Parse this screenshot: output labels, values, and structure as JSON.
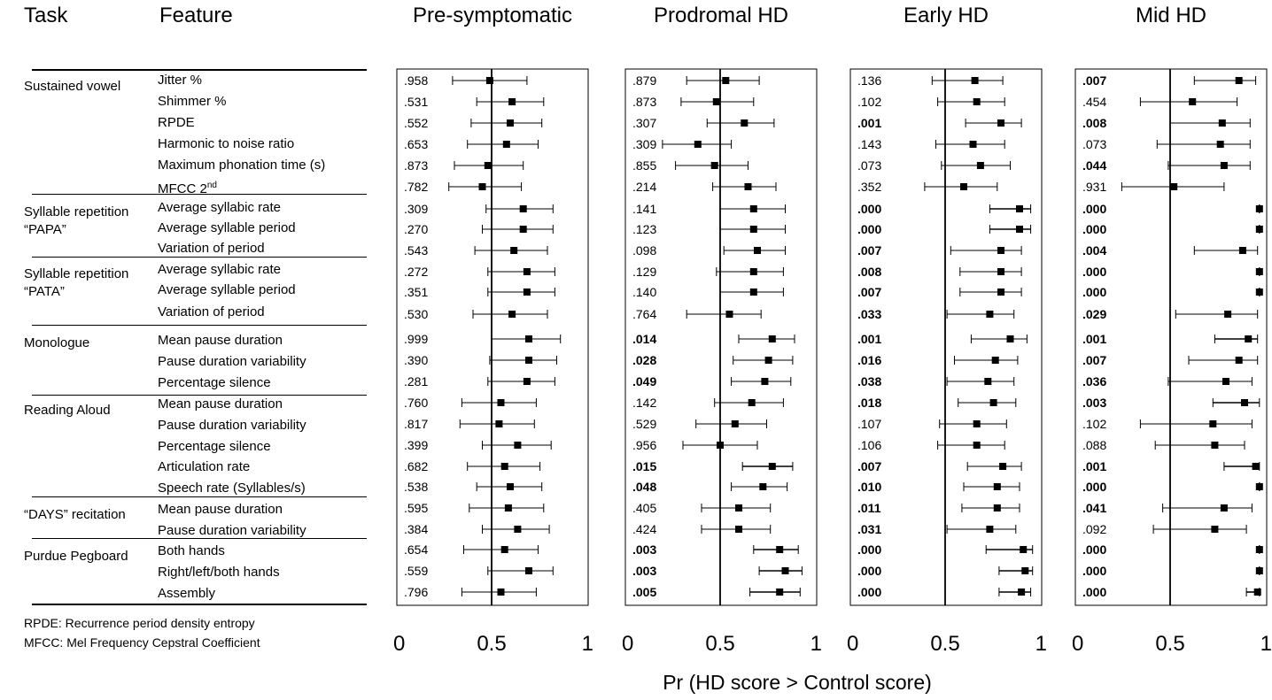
{
  "headers": {
    "task": "Task",
    "feature": "Feature"
  },
  "x_axis_label": "Pr (HD score > Control score)",
  "footnotes": [
    "RPDE: Recurrence period density entropy",
    "MFCC: Mel Frequency Cepstral Coefficient"
  ],
  "tasks": [
    {
      "label": "Sustained vowel",
      "features": [
        "Jitter %",
        "Shimmer %",
        "RPDE",
        "Harmonic to noise ratio",
        "Maximum phonation time (s)",
        "MFCC 2nd"
      ]
    },
    {
      "label": "Syllable repetition “PAPA”",
      "features": [
        "Average syllabic rate",
        "Average syllable period",
        "Variation of period"
      ]
    },
    {
      "label": "Syllable repetition “PATA”",
      "features": [
        "Average syllabic rate",
        "Average syllable period",
        "Variation of period"
      ]
    },
    {
      "label": "Monologue",
      "features": [
        "Mean pause duration",
        "Pause duration variability",
        "Percentage silence"
      ]
    },
    {
      "label": "Reading Aloud",
      "features": [
        "Mean pause duration",
        "Pause duration variability",
        "Percentage silence",
        "Articulation rate",
        "Speech rate (Syllables/s)"
      ]
    },
    {
      "label": "“DAYS” recitation",
      "features": [
        "Mean pause duration",
        "Pause duration variability"
      ]
    },
    {
      "label": "Purdue Pegboard",
      "features": [
        "Both hands",
        "Right/left/both hands",
        "Assembly"
      ]
    }
  ],
  "chart_data": {
    "type": "forest",
    "xlabel": "Pr (HD score > Control score)",
    "xlim": [
      0,
      1
    ],
    "xticks": [
      "0",
      "0.5",
      "1"
    ],
    "reference_line": 0.5,
    "panels": [
      {
        "title": "Pre-symptomatic",
        "pvalues": [
          ".958",
          ".531",
          ".552",
          ".653",
          ".873",
          ".782",
          ".309",
          ".270",
          ".543",
          ".272",
          ".351",
          ".530",
          ".999",
          ".390",
          ".281",
          ".760",
          ".817",
          ".399",
          ".682",
          ".538",
          ".595",
          ".384",
          ".654",
          ".559",
          ".796"
        ],
        "bold": [
          false,
          false,
          false,
          false,
          false,
          false,
          false,
          false,
          false,
          false,
          false,
          false,
          false,
          false,
          false,
          false,
          false,
          false,
          false,
          false,
          false,
          false,
          false,
          false,
          false
        ],
        "estimate": [
          0.49,
          0.61,
          0.6,
          0.58,
          0.48,
          0.45,
          0.67,
          0.67,
          0.62,
          0.69,
          0.69,
          0.61,
          0.7,
          0.7,
          0.69,
          0.55,
          0.54,
          0.64,
          0.57,
          0.6,
          0.59,
          0.64,
          0.57,
          0.7,
          0.55
        ],
        "lower": [
          0.29,
          0.42,
          0.39,
          0.37,
          0.3,
          0.27,
          0.47,
          0.45,
          0.41,
          0.48,
          0.48,
          0.4,
          0.5,
          0.49,
          0.48,
          0.34,
          0.33,
          0.45,
          0.37,
          0.42,
          0.38,
          0.45,
          0.35,
          0.48,
          0.34
        ],
        "upper": [
          0.69,
          0.78,
          0.77,
          0.75,
          0.67,
          0.66,
          0.83,
          0.83,
          0.8,
          0.84,
          0.84,
          0.8,
          0.87,
          0.85,
          0.84,
          0.74,
          0.73,
          0.82,
          0.76,
          0.77,
          0.78,
          0.81,
          0.75,
          0.83,
          0.74
        ]
      },
      {
        "title": "Prodromal HD",
        "pvalues": [
          ".879",
          ".873",
          ".307",
          ".309",
          ".855",
          ".214",
          ".141",
          ".123",
          ".098",
          ".129",
          ".140",
          ".764",
          ".014",
          ".028",
          ".049",
          ".142",
          ".529",
          ".956",
          ".015",
          ".048",
          ".405",
          ".424",
          ".003",
          ".003",
          ".005"
        ],
        "bold": [
          false,
          false,
          false,
          false,
          false,
          false,
          false,
          false,
          false,
          false,
          false,
          false,
          true,
          true,
          true,
          false,
          false,
          false,
          true,
          true,
          false,
          false,
          true,
          true,
          true
        ],
        "estimate": [
          0.53,
          0.48,
          0.63,
          0.38,
          0.47,
          0.65,
          0.68,
          0.68,
          0.7,
          0.68,
          0.68,
          0.55,
          0.78,
          0.76,
          0.74,
          0.67,
          0.58,
          0.5,
          0.78,
          0.73,
          0.6,
          0.6,
          0.82,
          0.85,
          0.82
        ],
        "lower": [
          0.32,
          0.29,
          0.43,
          0.19,
          0.26,
          0.46,
          0.5,
          0.5,
          0.52,
          0.48,
          0.5,
          0.32,
          0.6,
          0.57,
          0.56,
          0.47,
          0.37,
          0.3,
          0.62,
          0.56,
          0.4,
          0.4,
          0.68,
          0.71,
          0.66
        ],
        "upper": [
          0.71,
          0.68,
          0.79,
          0.56,
          0.65,
          0.8,
          0.85,
          0.85,
          0.85,
          0.84,
          0.84,
          0.72,
          0.9,
          0.89,
          0.88,
          0.84,
          0.75,
          0.7,
          0.89,
          0.86,
          0.77,
          0.77,
          0.92,
          0.94,
          0.93
        ]
      },
      {
        "title": "Early HD",
        "pvalues": [
          ".136",
          ".102",
          ".001",
          ".143",
          ".073",
          ".352",
          ".000",
          ".000",
          ".007",
          ".008",
          ".007",
          ".033",
          ".001",
          ".016",
          ".038",
          ".018",
          ".107",
          ".106",
          ".007",
          ".010",
          ".011",
          ".031",
          ".000",
          ".000",
          ".000"
        ],
        "bold": [
          false,
          false,
          true,
          false,
          false,
          false,
          true,
          true,
          true,
          true,
          true,
          true,
          true,
          true,
          true,
          true,
          false,
          false,
          true,
          true,
          true,
          true,
          true,
          true,
          true
        ],
        "estimate": [
          0.66,
          0.67,
          0.8,
          0.65,
          0.69,
          0.6,
          0.9,
          0.9,
          0.8,
          0.8,
          0.8,
          0.74,
          0.85,
          0.77,
          0.73,
          0.76,
          0.67,
          0.67,
          0.81,
          0.78,
          0.78,
          0.74,
          0.92,
          0.93,
          0.91
        ],
        "lower": [
          0.43,
          0.46,
          0.61,
          0.45,
          0.48,
          0.39,
          0.74,
          0.74,
          0.53,
          0.58,
          0.58,
          0.51,
          0.64,
          0.55,
          0.51,
          0.57,
          0.47,
          0.46,
          0.62,
          0.6,
          0.59,
          0.51,
          0.72,
          0.79,
          0.79
        ],
        "upper": [
          0.81,
          0.82,
          0.91,
          0.82,
          0.85,
          0.78,
          0.96,
          0.96,
          0.91,
          0.91,
          0.91,
          0.87,
          0.94,
          0.89,
          0.87,
          0.88,
          0.83,
          0.82,
          0.91,
          0.9,
          0.9,
          0.88,
          0.97,
          0.97,
          0.96
        ]
      },
      {
        "title": "Mid HD",
        "pvalues": [
          ".007",
          ".454",
          ".008",
          ".073",
          ".044",
          ".931",
          ".000",
          ".000",
          ".004",
          ".000",
          ".000",
          ".029",
          ".001",
          ".007",
          ".036",
          ".003",
          ".102",
          ".088",
          ".001",
          ".000",
          ".041",
          ".092",
          ".000",
          ".000",
          ".000"
        ],
        "bold": [
          true,
          false,
          true,
          false,
          true,
          false,
          true,
          true,
          true,
          true,
          true,
          true,
          true,
          true,
          true,
          true,
          false,
          false,
          true,
          true,
          true,
          false,
          true,
          true,
          true
        ],
        "estimate": [
          0.87,
          0.62,
          0.78,
          0.77,
          0.79,
          0.52,
          0.98,
          0.98,
          0.89,
          0.98,
          0.98,
          0.81,
          0.92,
          0.87,
          0.8,
          0.9,
          0.73,
          0.74,
          0.96,
          0.98,
          0.79,
          0.74,
          0.98,
          0.98,
          0.97
        ],
        "lower": [
          0.63,
          0.34,
          0.5,
          0.43,
          0.49,
          0.24,
          0.98,
          0.98,
          0.63,
          0.98,
          0.98,
          0.53,
          0.74,
          0.6,
          0.49,
          0.73,
          0.34,
          0.42,
          0.79,
          0.98,
          0.46,
          0.41,
          0.98,
          0.98,
          0.91
        ],
        "upper": [
          0.96,
          0.86,
          0.93,
          0.93,
          0.93,
          0.79,
          0.98,
          0.98,
          0.97,
          0.98,
          0.98,
          0.97,
          0.97,
          0.97,
          0.94,
          0.98,
          0.94,
          0.9,
          0.98,
          0.98,
          0.94,
          0.91,
          0.98,
          0.98,
          0.98
        ]
      }
    ]
  }
}
